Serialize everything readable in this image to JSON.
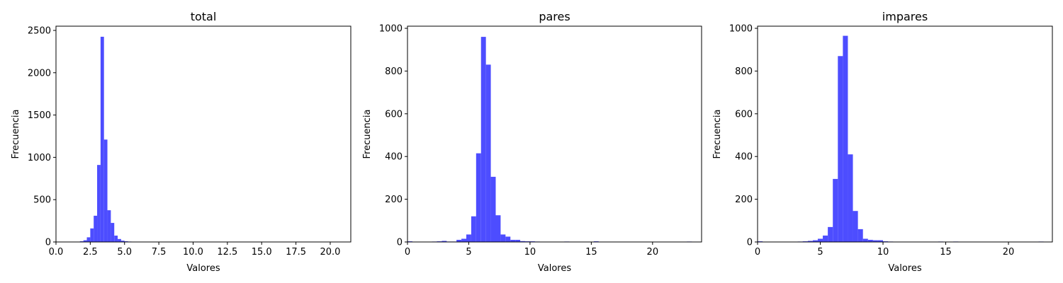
{
  "chart_data": [
    {
      "type": "bar",
      "subtype": "histogram",
      "title": "total",
      "xlabel": "Valores",
      "ylabel": "Frecuencia",
      "xlim": [
        0,
        21.5
      ],
      "ylim": [
        0,
        2550
      ],
      "xticks": [
        0,
        2.5,
        5,
        7.5,
        10,
        12.5,
        15,
        17.5,
        20
      ],
      "xtick_labels": [
        "0.0",
        "2.5",
        "5.0",
        "7.5",
        "10.0",
        "12.5",
        "15.0",
        "17.5",
        "20.0"
      ],
      "yticks": [
        0,
        500,
        1000,
        1500,
        2000,
        2500
      ],
      "ytick_labels": [
        "0",
        "500",
        "1000",
        "1500",
        "2000",
        "2500"
      ],
      "bar_color": "#4d4dff",
      "bin_width": 0.25,
      "bins": [
        {
          "x0": 1.0,
          "value": 2
        },
        {
          "x0": 1.25,
          "value": 3
        },
        {
          "x0": 1.5,
          "value": 4
        },
        {
          "x0": 1.75,
          "value": 8
        },
        {
          "x0": 2.0,
          "value": 20
        },
        {
          "x0": 2.25,
          "value": 55
        },
        {
          "x0": 2.5,
          "value": 160
        },
        {
          "x0": 2.75,
          "value": 310
        },
        {
          "x0": 3.0,
          "value": 910
        },
        {
          "x0": 3.25,
          "value": 2425
        },
        {
          "x0": 3.5,
          "value": 1210
        },
        {
          "x0": 3.75,
          "value": 375
        },
        {
          "x0": 4.0,
          "value": 225
        },
        {
          "x0": 4.25,
          "value": 75
        },
        {
          "x0": 4.5,
          "value": 35
        },
        {
          "x0": 4.75,
          "value": 15
        },
        {
          "x0": 5.0,
          "value": 8
        },
        {
          "x0": 5.25,
          "value": 5
        },
        {
          "x0": 5.5,
          "value": 3
        },
        {
          "x0": 5.75,
          "value": 2
        },
        {
          "x0": 7.5,
          "value": 3
        }
      ]
    },
    {
      "type": "bar",
      "subtype": "histogram",
      "title": "pares",
      "xlabel": "Valores",
      "ylabel": "Frecuencia",
      "xlim": [
        0,
        24
      ],
      "ylim": [
        0,
        1010
      ],
      "xticks": [
        0,
        5,
        10,
        15,
        20
      ],
      "xtick_labels": [
        "0",
        "5",
        "10",
        "15",
        "20"
      ],
      "yticks": [
        0,
        200,
        400,
        600,
        800,
        1000
      ],
      "ytick_labels": [
        "0",
        "200",
        "400",
        "600",
        "800",
        "1000"
      ],
      "bar_color": "#4d4dff",
      "bin_width": 0.4,
      "bins": [
        {
          "x0": 0.0,
          "value": 3
        },
        {
          "x0": 2.0,
          "value": 2
        },
        {
          "x0": 2.4,
          "value": 3
        },
        {
          "x0": 2.8,
          "value": 5
        },
        {
          "x0": 3.2,
          "value": 2
        },
        {
          "x0": 3.6,
          "value": 2
        },
        {
          "x0": 4.0,
          "value": 10
        },
        {
          "x0": 4.4,
          "value": 15
        },
        {
          "x0": 4.8,
          "value": 35
        },
        {
          "x0": 5.2,
          "value": 120
        },
        {
          "x0": 5.6,
          "value": 415
        },
        {
          "x0": 6.0,
          "value": 960
        },
        {
          "x0": 6.4,
          "value": 830
        },
        {
          "x0": 6.8,
          "value": 305
        },
        {
          "x0": 7.2,
          "value": 125
        },
        {
          "x0": 7.6,
          "value": 35
        },
        {
          "x0": 8.0,
          "value": 25
        },
        {
          "x0": 8.4,
          "value": 10
        },
        {
          "x0": 8.8,
          "value": 10
        },
        {
          "x0": 9.2,
          "value": 4
        },
        {
          "x0": 9.6,
          "value": 3
        },
        {
          "x0": 10.0,
          "value": 3
        },
        {
          "x0": 10.4,
          "value": 2
        },
        {
          "x0": 12.8,
          "value": 2
        },
        {
          "x0": 15.2,
          "value": 3
        },
        {
          "x0": 22.8,
          "value": 2
        }
      ]
    },
    {
      "type": "bar",
      "subtype": "histogram",
      "title": "impares",
      "xlabel": "Valores",
      "ylabel": "Frecuencia",
      "xlim": [
        0,
        23.5
      ],
      "ylim": [
        0,
        1010
      ],
      "xticks": [
        0,
        5,
        10,
        15,
        20
      ],
      "xtick_labels": [
        "0",
        "5",
        "10",
        "15",
        "20"
      ],
      "yticks": [
        0,
        200,
        400,
        600,
        800,
        1000
      ],
      "ytick_labels": [
        "0",
        "200",
        "400",
        "600",
        "800",
        "1000"
      ],
      "bar_color": "#4d4dff",
      "bin_width": 0.4,
      "bins": [
        {
          "x0": 0.0,
          "value": 3
        },
        {
          "x0": 3.2,
          "value": 2
        },
        {
          "x0": 3.6,
          "value": 3
        },
        {
          "x0": 4.0,
          "value": 5
        },
        {
          "x0": 4.4,
          "value": 8
        },
        {
          "x0": 4.8,
          "value": 15
        },
        {
          "x0": 5.2,
          "value": 30
        },
        {
          "x0": 5.6,
          "value": 70
        },
        {
          "x0": 6.0,
          "value": 295
        },
        {
          "x0": 6.4,
          "value": 870
        },
        {
          "x0": 6.8,
          "value": 965
        },
        {
          "x0": 7.2,
          "value": 410
        },
        {
          "x0": 7.6,
          "value": 145
        },
        {
          "x0": 8.0,
          "value": 60
        },
        {
          "x0": 8.4,
          "value": 15
        },
        {
          "x0": 8.8,
          "value": 10
        },
        {
          "x0": 9.2,
          "value": 8
        },
        {
          "x0": 9.6,
          "value": 8
        },
        {
          "x0": 10.0,
          "value": 3
        },
        {
          "x0": 10.4,
          "value": 2
        },
        {
          "x0": 14.4,
          "value": 2
        },
        {
          "x0": 15.6,
          "value": 2
        },
        {
          "x0": 22.4,
          "value": 2
        }
      ]
    }
  ]
}
